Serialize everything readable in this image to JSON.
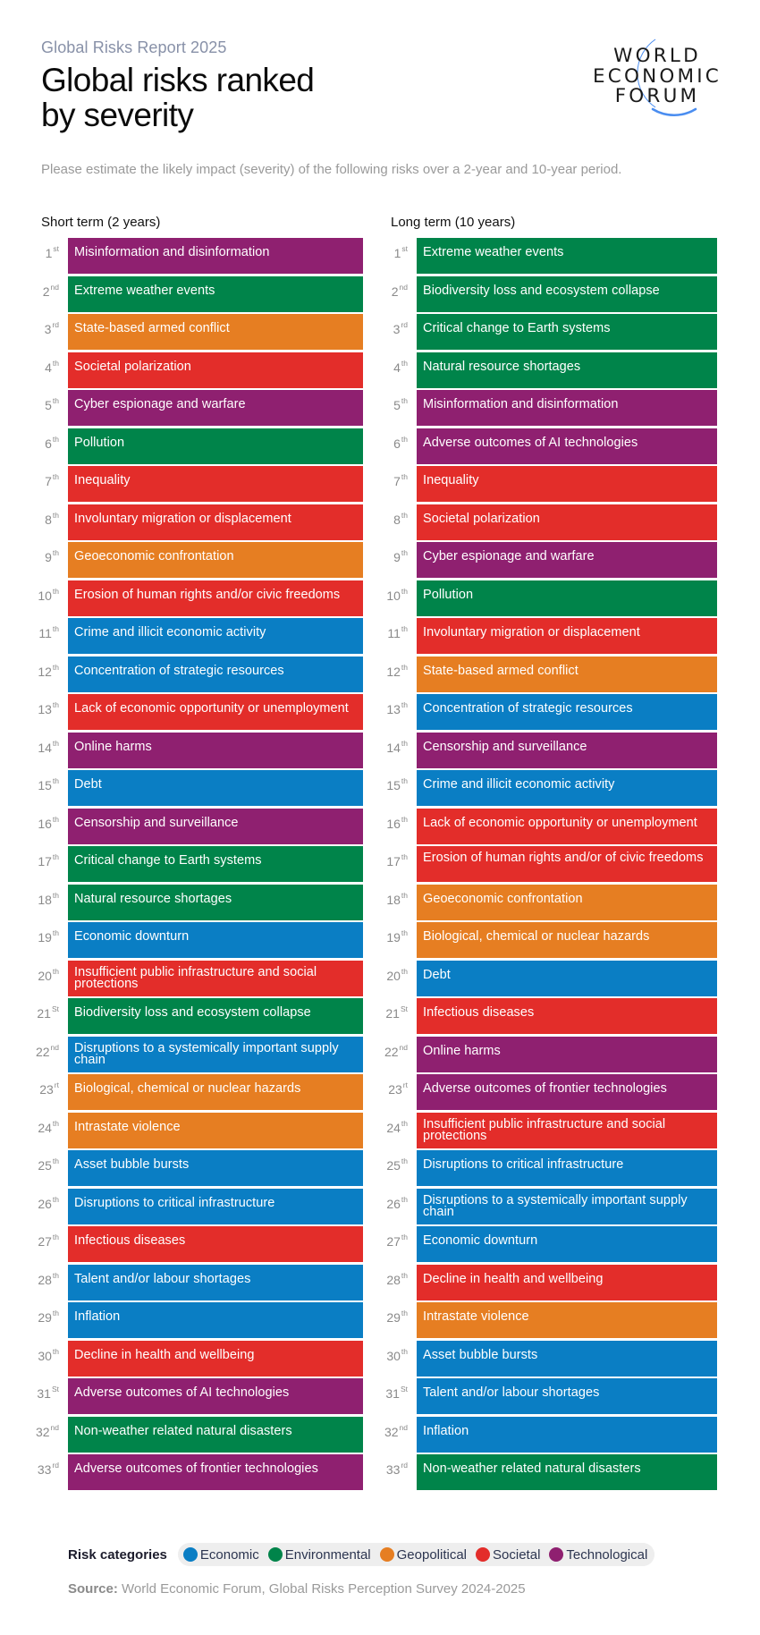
{
  "header": {
    "kicker": "Global Risks Report 2025",
    "title_line1": "Global risks ranked",
    "title_line2": "by severity",
    "subtitle": "Please estimate the likely impact (severity) of the following risks over a 2-year and 10-year period.",
    "logo": {
      "line1": "WORLD",
      "line2": "ECONOMIC",
      "line3": "FORUM",
      "arc_color": "#4a8df0"
    }
  },
  "columns": {
    "short_term_label": "Short term (2 years)",
    "long_term_label": "Long term (10 years)"
  },
  "legend": {
    "label": "Risk categories",
    "items": [
      {
        "name": "Economic",
        "color": "#0a7ec4"
      },
      {
        "name": "Environmental",
        "color": "#00844a"
      },
      {
        "name": "Geopolitical",
        "color": "#e67e22"
      },
      {
        "name": "Societal",
        "color": "#e32d2a"
      },
      {
        "name": "Technological",
        "color": "#8f2070"
      }
    ]
  },
  "source": {
    "label": "Source:",
    "text": " World Economic Forum, Global Risks Perception Survey 2024-2025"
  },
  "chart_data": {
    "type": "table",
    "title": "Global risks ranked by severity",
    "subtitle": "Please estimate the likely impact (severity) of the following risks over a 2-year and 10-year period.",
    "category_colors": {
      "Economic": "#0a7ec4",
      "Environmental": "#00844a",
      "Geopolitical": "#e67e22",
      "Societal": "#e32d2a",
      "Technological": "#8f2070"
    },
    "short_term": [
      {
        "rank": "1",
        "suffix": "st",
        "risk": "Misinformation and disinformation",
        "category": "Technological"
      },
      {
        "rank": "2",
        "suffix": "nd",
        "risk": "Extreme weather events",
        "category": "Environmental"
      },
      {
        "rank": "3",
        "suffix": "rd",
        "risk": "State-based armed conflict",
        "category": "Geopolitical"
      },
      {
        "rank": "4",
        "suffix": "th",
        "risk": "Societal polarization",
        "category": "Societal"
      },
      {
        "rank": "5",
        "suffix": "th",
        "risk": "Cyber espionage and warfare",
        "category": "Technological"
      },
      {
        "rank": "6",
        "suffix": "th",
        "risk": "Pollution",
        "category": "Environmental"
      },
      {
        "rank": "7",
        "suffix": "th",
        "risk": "Inequality",
        "category": "Societal"
      },
      {
        "rank": "8",
        "suffix": "th",
        "risk": "Involuntary migration or displacement",
        "category": "Societal"
      },
      {
        "rank": "9",
        "suffix": "th",
        "risk": "Geoeconomic confrontation",
        "category": "Geopolitical"
      },
      {
        "rank": "10",
        "suffix": "th",
        "risk": "Erosion of human rights and/or civic freedoms",
        "category": "Societal"
      },
      {
        "rank": "11",
        "suffix": "th",
        "risk": "Crime and illicit economic activity",
        "category": "Economic"
      },
      {
        "rank": "12",
        "suffix": "th",
        "risk": "Concentration of strategic resources",
        "category": "Economic"
      },
      {
        "rank": "13",
        "suffix": "th",
        "risk": "Lack of economic opportunity or unemployment",
        "category": "Societal"
      },
      {
        "rank": "14",
        "suffix": "th",
        "risk": "Online harms",
        "category": "Technological"
      },
      {
        "rank": "15",
        "suffix": "th",
        "risk": "Debt",
        "category": "Economic"
      },
      {
        "rank": "16",
        "suffix": "th",
        "risk": "Censorship and surveillance",
        "category": "Technological"
      },
      {
        "rank": "17",
        "suffix": "th",
        "risk": "Critical change to Earth systems",
        "category": "Environmental"
      },
      {
        "rank": "18",
        "suffix": "th",
        "risk": "Natural resource shortages",
        "category": "Environmental"
      },
      {
        "rank": "19",
        "suffix": "th",
        "risk": "Economic downturn",
        "category": "Economic"
      },
      {
        "rank": "20",
        "suffix": "th",
        "risk": "Insufficient public infrastructure and social protections",
        "category": "Societal"
      },
      {
        "rank": "21",
        "suffix": "St",
        "risk": "Biodiversity loss and ecosystem collapse",
        "category": "Environmental"
      },
      {
        "rank": "22",
        "suffix": "nd",
        "risk": "Disruptions to a systemically important supply chain",
        "category": "Economic"
      },
      {
        "rank": "23",
        "suffix": "rt",
        "risk": "Biological, chemical or nuclear hazards",
        "category": "Geopolitical"
      },
      {
        "rank": "24",
        "suffix": "th",
        "risk": "Intrastate violence",
        "category": "Geopolitical"
      },
      {
        "rank": "25",
        "suffix": "th",
        "risk": "Asset bubble bursts",
        "category": "Economic"
      },
      {
        "rank": "26",
        "suffix": "th",
        "risk": "Disruptions to critical infrastructure",
        "category": "Economic"
      },
      {
        "rank": "27",
        "suffix": "th",
        "risk": "Infectious diseases",
        "category": "Societal"
      },
      {
        "rank": "28",
        "suffix": "th",
        "risk": "Talent and/or labour shortages",
        "category": "Economic"
      },
      {
        "rank": "29",
        "suffix": "th",
        "risk": "Inflation",
        "category": "Economic"
      },
      {
        "rank": "30",
        "suffix": "th",
        "risk": "Decline in health and wellbeing",
        "category": "Societal"
      },
      {
        "rank": "31",
        "suffix": "St",
        "risk": "Adverse outcomes of AI technologies",
        "category": "Technological"
      },
      {
        "rank": "32",
        "suffix": "nd",
        "risk": "Non-weather related natural disasters",
        "category": "Environmental"
      },
      {
        "rank": "33",
        "suffix": "rd",
        "risk": "Adverse outcomes of frontier technologies",
        "category": "Technological"
      }
    ],
    "long_term": [
      {
        "rank": "1",
        "suffix": "st",
        "risk": "Extreme weather events",
        "category": "Environmental"
      },
      {
        "rank": "2",
        "suffix": "nd",
        "risk": "Biodiversity loss and ecosystem collapse",
        "category": "Environmental"
      },
      {
        "rank": "3",
        "suffix": "rd",
        "risk": "Critical change to Earth systems",
        "category": "Environmental"
      },
      {
        "rank": "4",
        "suffix": "th",
        "risk": "Natural resource shortages",
        "category": "Environmental"
      },
      {
        "rank": "5",
        "suffix": "th",
        "risk": "Misinformation and disinformation",
        "category": "Technological"
      },
      {
        "rank": "6",
        "suffix": "th",
        "risk": "Adverse outcomes of AI technologies",
        "category": "Technological"
      },
      {
        "rank": "7",
        "suffix": "th",
        "risk": "Inequality",
        "category": "Societal"
      },
      {
        "rank": "8",
        "suffix": "th",
        "risk": "Societal polarization",
        "category": "Societal"
      },
      {
        "rank": "9",
        "suffix": "th",
        "risk": "Cyber espionage and warfare",
        "category": "Technological"
      },
      {
        "rank": "10",
        "suffix": "th",
        "risk": "Pollution",
        "category": "Environmental"
      },
      {
        "rank": "11",
        "suffix": "th",
        "risk": "Involuntary migration or displacement",
        "category": "Societal"
      },
      {
        "rank": "12",
        "suffix": "th",
        "risk": "State-based armed conflict",
        "category": "Geopolitical"
      },
      {
        "rank": "13",
        "suffix": "th",
        "risk": "Concentration of strategic resources",
        "category": "Economic"
      },
      {
        "rank": "14",
        "suffix": "th",
        "risk": "Censorship and surveillance",
        "category": "Technological"
      },
      {
        "rank": "15",
        "suffix": "th",
        "risk": "Crime and illicit economic activity",
        "category": "Economic"
      },
      {
        "rank": "16",
        "suffix": "th",
        "risk": "Lack of economic opportunity or unemployment",
        "category": "Societal"
      },
      {
        "rank": "17",
        "suffix": "th",
        "risk": "Erosion of human rights and/or of civic freedoms",
        "category": "Societal"
      },
      {
        "rank": "18",
        "suffix": "th",
        "risk": "Geoeconomic confrontation",
        "category": "Geopolitical"
      },
      {
        "rank": "19",
        "suffix": "th",
        "risk": "Biological, chemical or nuclear hazards",
        "category": "Geopolitical"
      },
      {
        "rank": "20",
        "suffix": "th",
        "risk": "Debt",
        "category": "Economic"
      },
      {
        "rank": "21",
        "suffix": "St",
        "risk": "Infectious diseases",
        "category": "Societal"
      },
      {
        "rank": "22",
        "suffix": "nd",
        "risk": "Online harms",
        "category": "Technological"
      },
      {
        "rank": "23",
        "suffix": "rt",
        "risk": "Adverse outcomes of frontier technologies",
        "category": "Technological"
      },
      {
        "rank": "24",
        "suffix": "th",
        "risk": "Insufficient public infrastructure and social protections",
        "category": "Societal"
      },
      {
        "rank": "25",
        "suffix": "th",
        "risk": "Disruptions to critical infrastructure",
        "category": "Economic"
      },
      {
        "rank": "26",
        "suffix": "th",
        "risk": "Disruptions to a systemically important supply chain",
        "category": "Economic"
      },
      {
        "rank": "27",
        "suffix": "th",
        "risk": "Economic downturn",
        "category": "Economic"
      },
      {
        "rank": "28",
        "suffix": "th",
        "risk": "Decline in health and wellbeing",
        "category": "Societal"
      },
      {
        "rank": "29",
        "suffix": "th",
        "risk": "Intrastate violence",
        "category": "Geopolitical"
      },
      {
        "rank": "30",
        "suffix": "th",
        "risk": "Asset bubble bursts",
        "category": "Economic"
      },
      {
        "rank": "31",
        "suffix": "St",
        "risk": "Talent and/or labour shortages",
        "category": "Economic"
      },
      {
        "rank": "32",
        "suffix": "nd",
        "risk": "Inflation",
        "category": "Economic"
      },
      {
        "rank": "33",
        "suffix": "rd",
        "risk": "Non-weather related natural disasters",
        "category": "Environmental"
      }
    ]
  }
}
